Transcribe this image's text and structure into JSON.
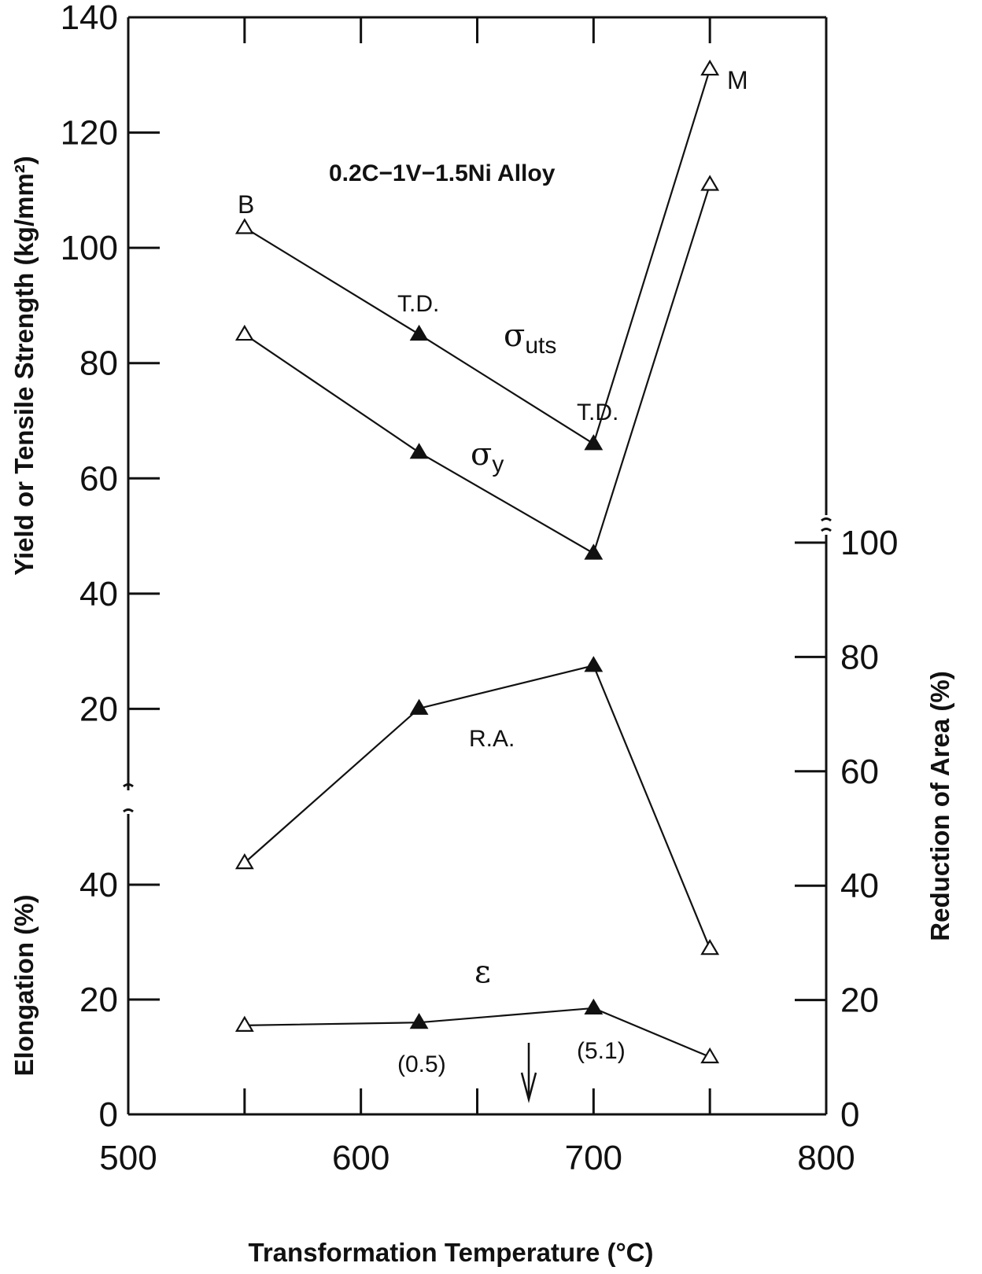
{
  "chart_data": {
    "type": "line",
    "title": "0.2C−1V−1.5Ni Alloy",
    "xlabel": "Transformation Temperature (°C)",
    "ylabel_left_top": "Yield or Tensile Strength (kg/mm²)",
    "ylabel_left_bottom": "Elongation (%)",
    "ylabel_right": "Reduction of Area (%)",
    "x_ticks": [
      "500",
      "600",
      "700",
      "800"
    ],
    "xlim": [
      500,
      800
    ],
    "strength_ticks": [
      "20",
      "40",
      "60",
      "80",
      "100",
      "120",
      "140"
    ],
    "strength_lim": [
      0,
      140
    ],
    "elongation_ticks": [
      "0",
      "20",
      "40"
    ],
    "elongation_lim": [
      0,
      50
    ],
    "ra_ticks": [
      "0",
      "20",
      "40",
      "60",
      "80",
      "100"
    ],
    "ra_lim": [
      0,
      100
    ],
    "x": [
      550,
      625,
      700,
      750
    ],
    "series": [
      {
        "name": "σuts",
        "axis": "strength",
        "values": [
          103.5,
          85,
          66,
          131
        ],
        "filled": [
          false,
          true,
          true,
          false
        ]
      },
      {
        "name": "σy",
        "axis": "strength",
        "values": [
          85,
          64.5,
          47,
          111
        ],
        "filled": [
          false,
          true,
          true,
          false
        ]
      },
      {
        "name": "R.A.",
        "axis": "reduction_of_area",
        "values": [
          44,
          71,
          78.5,
          29
        ],
        "filled": [
          false,
          true,
          true,
          false
        ]
      },
      {
        "name": "ε",
        "axis": "elongation",
        "values": [
          15.5,
          16,
          18.5,
          10
        ],
        "filled": [
          false,
          true,
          true,
          false
        ]
      }
    ],
    "annotations": {
      "label_b": "B",
      "label_m": "M",
      "td_1": "T.D.",
      "td_2": "T.D.",
      "uts_symbol": "σ",
      "uts_sub": "uts",
      "y_symbol": "σ",
      "y_sub": "y",
      "ra_label": "R.A.",
      "eps_label": "ε",
      "paren_1": "(0.5)",
      "paren_2": "(5.1)"
    },
    "marker_arrow_x": 672
  }
}
